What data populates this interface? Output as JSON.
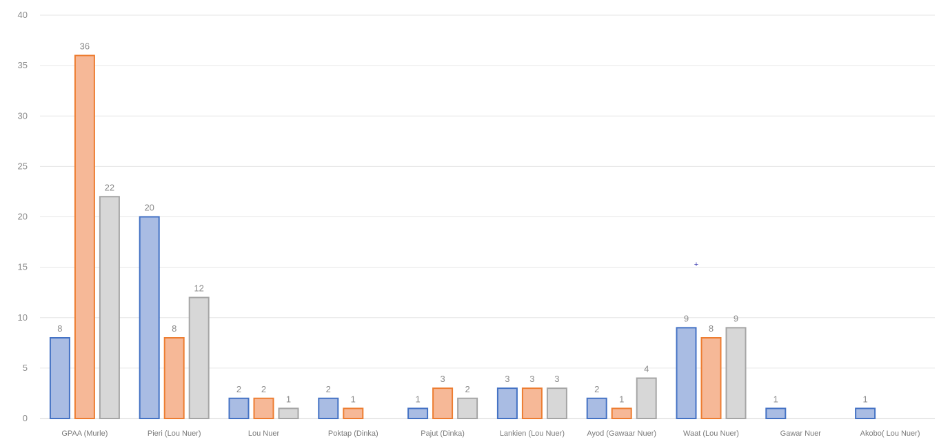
{
  "chart_data": {
    "type": "bar",
    "categories": [
      "GPAA (Murle)",
      "Pieri (Lou Nuer)",
      "Lou Nuer",
      "Poktap (Dinka)",
      "Pajut (Dinka)",
      "Lankien (Lou Nuer)",
      "Ayod (Gawaar Nuer)",
      "Waat (Lou Nuer)",
      "Gawar Nuer",
      "Akobo( Lou Nuer)"
    ],
    "series": [
      {
        "values": [
          8,
          20,
          2,
          2,
          1,
          3,
          2,
          9,
          1,
          1
        ],
        "color": "#4472c4"
      },
      {
        "values": [
          36,
          8,
          2,
          1,
          3,
          3,
          1,
          8,
          null,
          null
        ],
        "color": "#ed7d31"
      },
      {
        "values": [
          22,
          12,
          1,
          null,
          2,
          3,
          4,
          9,
          null,
          null
        ],
        "color": "#a5a5a5"
      }
    ],
    "yticks": [
      0,
      5,
      10,
      15,
      20,
      25,
      30,
      35,
      40
    ],
    "ylim": [
      0,
      40
    ],
    "grid": true,
    "data_labels": true,
    "legend": "none"
  }
}
